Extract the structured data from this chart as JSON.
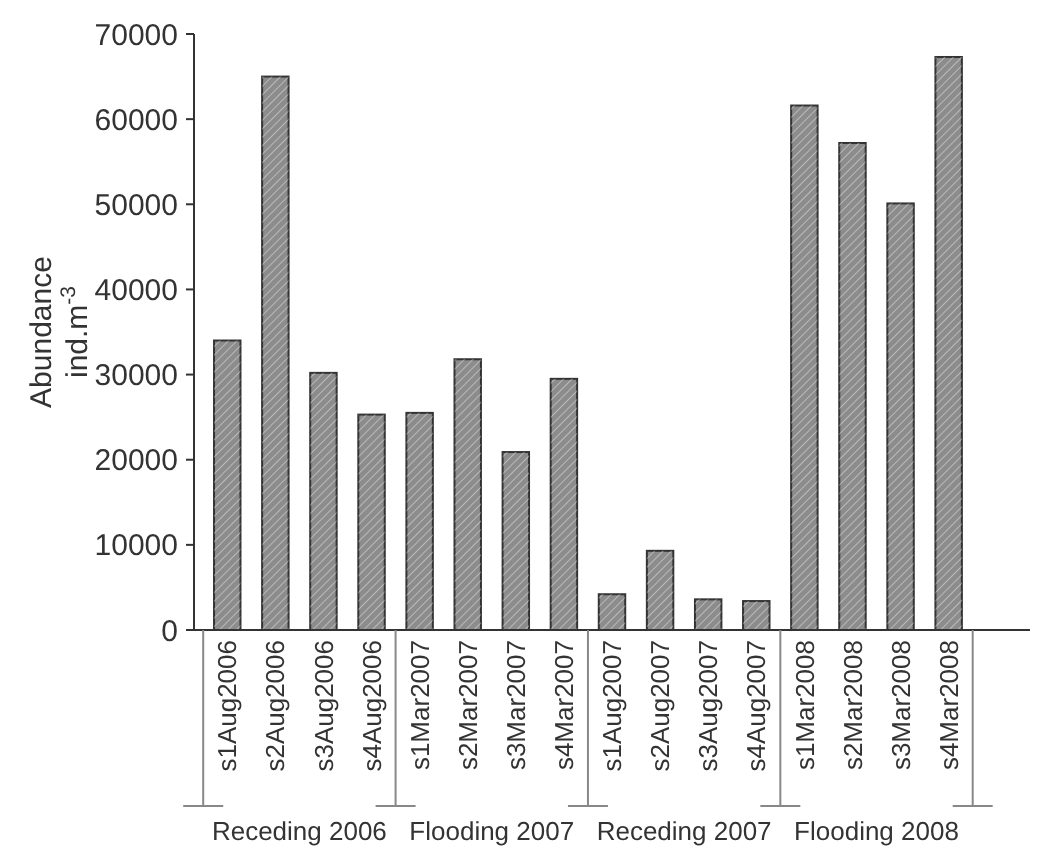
{
  "chart_data": {
    "type": "bar",
    "ylabel": "Abundance ind.m$^{-3}$",
    "categories": [
      "s1Aug2006",
      "s2Aug2006",
      "s3Aug2006",
      "s4Aug2006",
      "s1Mar2007",
      "s2Mar2007",
      "s3Mar2007",
      "s4Mar2007",
      "s1Aug2007",
      "s2Aug2007",
      "s3Aug2007",
      "s4Aug2007",
      "s1Mar2008",
      "s2Mar2008",
      "s3Mar2008",
      "s4Mar2008",
      null
    ],
    "values": [
      34000,
      65000,
      30200,
      25300,
      25500,
      31800,
      20900,
      29500,
      4200,
      9300,
      3600,
      3400,
      61600,
      57200,
      50100,
      67300,
      null
    ],
    "color": "#8c8c8c",
    "annotations": [
      "Receding 2006",
      "Flooding 2007",
      "Receding 2007",
      "Flooding 2008"
    ],
    "ylim": [
      0,
      70000
    ],
    "yticks": [
      0,
      10000,
      20000,
      30000,
      40000,
      50000,
      60000,
      70000
    ],
    "grid": false
  }
}
